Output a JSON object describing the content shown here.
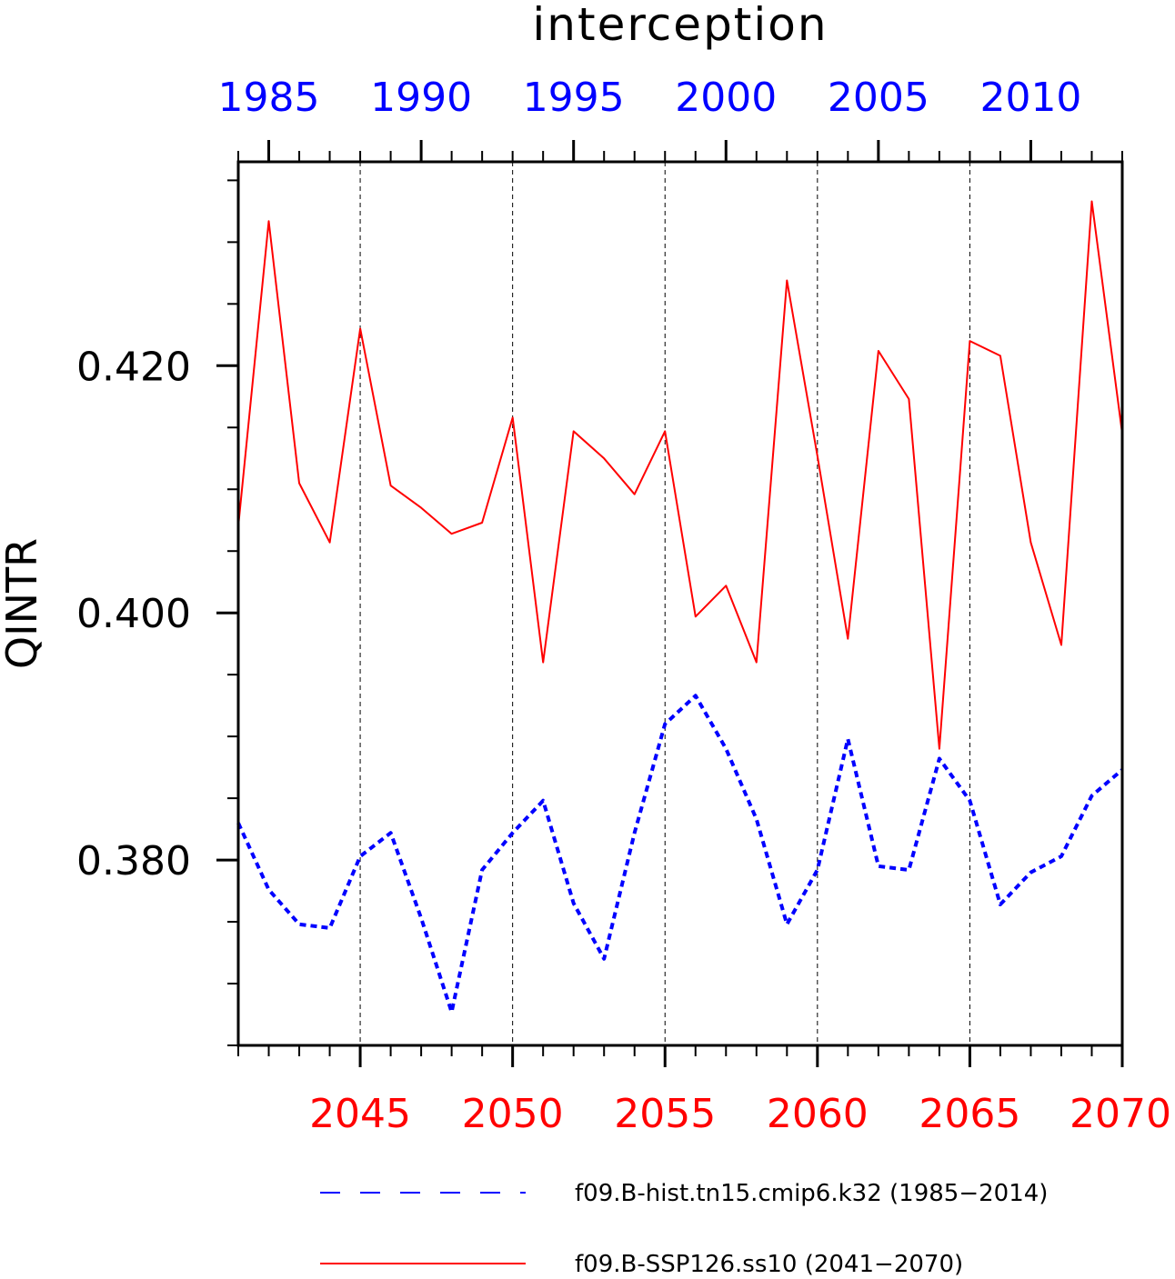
{
  "chart_data": {
    "type": "line",
    "title": "interception",
    "ylabel": "QINTR",
    "ylim": [
      0.365,
      0.4365
    ],
    "yticks": [
      0.38,
      0.4,
      0.42
    ],
    "ytick_labels": [
      "0.380",
      "0.400",
      "0.420"
    ],
    "grid": "vertical dashed lines at labeled years",
    "x_top": {
      "color": "#0000ff",
      "range": [
        1984,
        2013
      ],
      "tick_labels": [
        "1985",
        "1990",
        "1995",
        "2000",
        "2005",
        "2010"
      ],
      "tick_values": [
        1985,
        1990,
        1995,
        2000,
        2005,
        2010
      ]
    },
    "x_bottom": {
      "color": "#ff0000",
      "range": [
        2041,
        2070
      ],
      "tick_labels": [
        "2045",
        "2050",
        "2055",
        "2060",
        "2065",
        "2070"
      ],
      "tick_values": [
        2045,
        2050,
        2055,
        2060,
        2065,
        2070
      ]
    },
    "series": [
      {
        "name": "f09.B-hist.tn15.cmip6.k32 (1985-2014)",
        "color": "#0000ff",
        "style": "dashed",
        "axis": "top",
        "x": [
          1984,
          1985,
          1986,
          1987,
          1988,
          1989,
          1990,
          1991,
          1992,
          1993,
          1994,
          1995,
          1996,
          1997,
          1998,
          1999,
          2000,
          2001,
          2002,
          2003,
          2004,
          2005,
          2006,
          2007,
          2008,
          2009,
          2010,
          2011,
          2012,
          2013
        ],
        "values": [
          0.383,
          0.3776,
          0.3748,
          0.3745,
          0.3803,
          0.3822,
          0.3753,
          0.3677,
          0.3792,
          0.3822,
          0.3848,
          0.3765,
          0.372,
          0.3822,
          0.391,
          0.3933,
          0.389,
          0.3833,
          0.3748,
          0.3792,
          0.3898,
          0.3795,
          0.3792,
          0.3882,
          0.3848,
          0.3764,
          0.379,
          0.3803,
          0.3852,
          0.3873
        ]
      },
      {
        "name": "f09.B-SSP126.ss10 (2041-2070)",
        "color": "#ff0000",
        "style": "solid",
        "axis": "bottom",
        "x": [
          2041,
          2042,
          2043,
          2044,
          2045,
          2046,
          2047,
          2048,
          2049,
          2050,
          2051,
          2052,
          2053,
          2054,
          2055,
          2056,
          2057,
          2058,
          2059,
          2060,
          2061,
          2062,
          2063,
          2064,
          2065,
          2066,
          2067,
          2068,
          2069,
          2070
        ],
        "values": [
          0.407,
          0.4317,
          0.4105,
          0.4057,
          0.423,
          0.4103,
          0.4085,
          0.4064,
          0.4073,
          0.4158,
          0.396,
          0.4147,
          0.4125,
          0.4096,
          0.4147,
          0.3997,
          0.4022,
          0.396,
          0.4269,
          0.4127,
          0.3979,
          0.4212,
          0.4173,
          0.389,
          0.422,
          0.4208,
          0.4057,
          0.3974,
          0.4333,
          0.4145
        ]
      }
    ],
    "legend": {
      "placement": "bottom",
      "entries": [
        {
          "label": "f09.B-hist.tn15.cmip6.k32 (1985−2014)",
          "color": "#0000ff",
          "style": "dashed"
        },
        {
          "label": "f09.B-SSP126.ss10 (2041−2070)",
          "color": "#ff0000",
          "style": "solid"
        }
      ]
    }
  }
}
